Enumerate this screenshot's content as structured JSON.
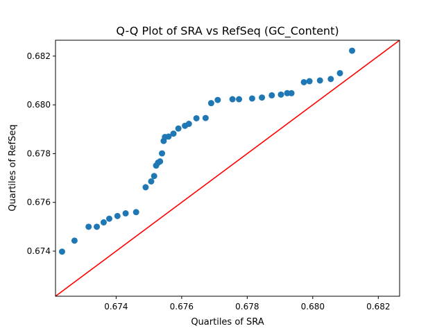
{
  "chart_data": {
    "type": "scatter",
    "title": "Q-Q Plot of SRA vs RefSeq (GC_Content)",
    "xlabel": "Quartiles of SRA",
    "ylabel": "Quartiles of RefSeq",
    "xlim": [
      0.67215,
      0.68265
    ],
    "ylim": [
      0.67215,
      0.68265
    ],
    "x_ticks": [
      "0.674",
      "0.676",
      "0.678",
      "0.680",
      "0.682"
    ],
    "y_ticks": [
      "0.674",
      "0.676",
      "0.678",
      "0.680",
      "0.682"
    ],
    "grid": false,
    "point_color": "#1f77b4",
    "reference_line": {
      "type": "y=x",
      "color": "#ff0000"
    },
    "points": [
      [
        0.67235,
        0.67398
      ],
      [
        0.67273,
        0.67443
      ],
      [
        0.67316,
        0.675
      ],
      [
        0.67341,
        0.675
      ],
      [
        0.67362,
        0.67518
      ],
      [
        0.67379,
        0.67533
      ],
      [
        0.67404,
        0.67544
      ],
      [
        0.67429,
        0.67555
      ],
      [
        0.67461,
        0.6756
      ],
      [
        0.6749,
        0.67662
      ],
      [
        0.67507,
        0.67686
      ],
      [
        0.67516,
        0.67708
      ],
      [
        0.67522,
        0.67751
      ],
      [
        0.67528,
        0.67763
      ],
      [
        0.67534,
        0.67768
      ],
      [
        0.6754,
        0.67801
      ],
      [
        0.67545,
        0.67852
      ],
      [
        0.67549,
        0.67868
      ],
      [
        0.6756,
        0.6787
      ],
      [
        0.67575,
        0.67882
      ],
      [
        0.6759,
        0.67903
      ],
      [
        0.6761,
        0.67914
      ],
      [
        0.67622,
        0.67922
      ],
      [
        0.67645,
        0.67945
      ],
      [
        0.67673,
        0.67946
      ],
      [
        0.6769,
        0.68007
      ],
      [
        0.6771,
        0.6802
      ],
      [
        0.67755,
        0.68023
      ],
      [
        0.67775,
        0.68023
      ],
      [
        0.67815,
        0.68026
      ],
      [
        0.67845,
        0.6803
      ],
      [
        0.67875,
        0.68039
      ],
      [
        0.67903,
        0.68042
      ],
      [
        0.67922,
        0.68048
      ],
      [
        0.67935,
        0.68048
      ],
      [
        0.67973,
        0.68093
      ],
      [
        0.6799,
        0.68097
      ],
      [
        0.68022,
        0.681
      ],
      [
        0.68055,
        0.68106
      ],
      [
        0.68083,
        0.6813
      ],
      [
        0.6812,
        0.68222
      ]
    ]
  }
}
